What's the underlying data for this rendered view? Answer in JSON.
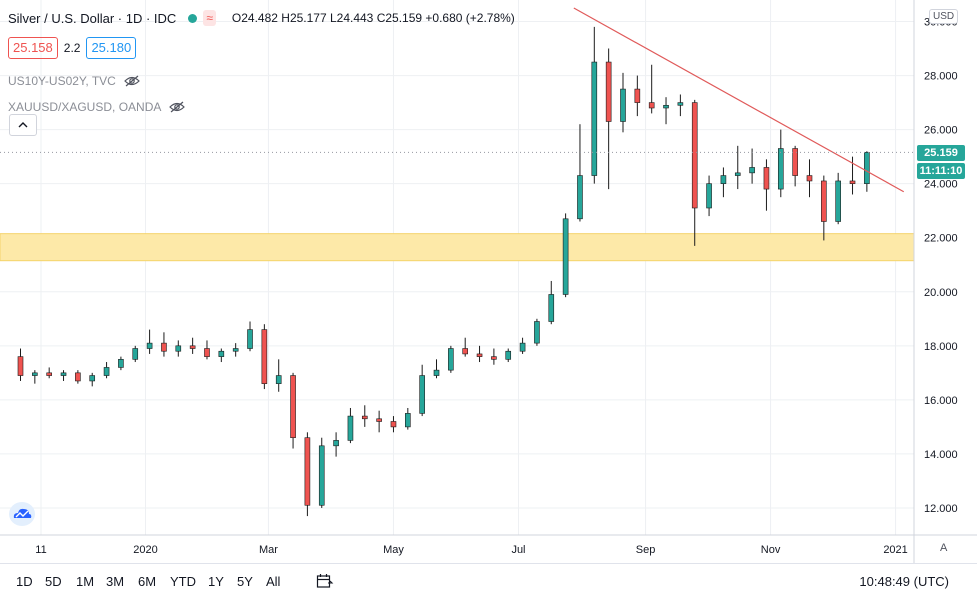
{
  "symbol": {
    "title": "Silver / U.S. Dollar · 1D · IDC",
    "ohlc": "O24.482 H25.177 L24.443 C25.159 +0.680 (+2.78%)",
    "wave_icon": "≈"
  },
  "quote": {
    "bid": "25.158",
    "spread": "2.2",
    "ask": "25.180"
  },
  "studies": [
    {
      "label": "US10Y-US02Y, TVC",
      "icon": "eye-slash-icon"
    },
    {
      "label": "XAUUSD/XAGUSD, OANDA",
      "icon": "eye-slash-icon"
    }
  ],
  "collapse_icon": "chevron-up-icon",
  "currency_badge": "USD",
  "price_axis": {
    "ticks": [
      "30.000",
      "28.000",
      "26.000",
      "24.000",
      "22.000",
      "20.000",
      "18.000",
      "16.000",
      "14.000",
      "12.000"
    ],
    "last_price": "25.159",
    "countdown": "11:11:10"
  },
  "time_axis": {
    "ticks": [
      "11",
      "2020",
      "Mar",
      "May",
      "Jul",
      "Sep",
      "Nov",
      "2021"
    ]
  },
  "auto_label": "A",
  "toolbar": {
    "ranges": [
      "1D",
      "5D",
      "1M",
      "3M",
      "6M",
      "YTD",
      "1Y",
      "5Y",
      "All"
    ],
    "compare_icon": "calendar-range-icon",
    "clock": "10:48:49 (UTC)"
  },
  "colors": {
    "up": "#26a69a",
    "down": "#ef5350",
    "trendline": "#e05a5a",
    "support_zone": "#fde9a8"
  },
  "chart_data": {
    "type": "candlestick",
    "ylim": [
      11.0,
      30.5
    ],
    "trendline": [
      {
        "date": "2020-07-28",
        "price": 30.5
      },
      {
        "date": "2021-01-05",
        "price": 23.7
      }
    ],
    "support_zone": [
      21.15,
      22.15
    ],
    "candles": [
      [
        "2019-11-01",
        17.6,
        17.9,
        16.7,
        16.9
      ],
      [
        "2019-11-08",
        16.9,
        17.1,
        16.6,
        17.0
      ],
      [
        "2019-11-15",
        17.0,
        17.2,
        16.8,
        16.9
      ],
      [
        "2019-11-22",
        16.9,
        17.1,
        16.7,
        17.0
      ],
      [
        "2019-11-29",
        17.0,
        17.1,
        16.6,
        16.7
      ],
      [
        "2019-12-06",
        16.7,
        17.0,
        16.5,
        16.9
      ],
      [
        "2019-12-13",
        16.9,
        17.4,
        16.8,
        17.2
      ],
      [
        "2019-12-20",
        17.2,
        17.6,
        17.1,
        17.5
      ],
      [
        "2019-12-27",
        17.5,
        18.0,
        17.4,
        17.9
      ],
      [
        "2020-01-03",
        17.9,
        18.6,
        17.7,
        18.1
      ],
      [
        "2020-01-10",
        18.1,
        18.5,
        17.6,
        17.8
      ],
      [
        "2020-01-17",
        17.8,
        18.2,
        17.6,
        18.0
      ],
      [
        "2020-01-24",
        18.0,
        18.3,
        17.7,
        17.9
      ],
      [
        "2020-01-31",
        17.9,
        18.2,
        17.5,
        17.6
      ],
      [
        "2020-02-07",
        17.6,
        17.9,
        17.4,
        17.8
      ],
      [
        "2020-02-14",
        17.8,
        18.1,
        17.6,
        17.9
      ],
      [
        "2020-02-21",
        17.9,
        18.9,
        17.8,
        18.6
      ],
      [
        "2020-02-28",
        18.6,
        18.8,
        16.4,
        16.6
      ],
      [
        "2020-03-06",
        16.6,
        17.5,
        16.3,
        16.9
      ],
      [
        "2020-03-13",
        16.9,
        17.0,
        14.2,
        14.6
      ],
      [
        "2020-03-20",
        14.6,
        14.8,
        11.7,
        12.1
      ],
      [
        "2020-03-27",
        12.1,
        14.6,
        12.0,
        14.3
      ],
      [
        "2020-04-03",
        14.3,
        14.8,
        13.9,
        14.5
      ],
      [
        "2020-04-10",
        14.5,
        15.7,
        14.4,
        15.4
      ],
      [
        "2020-04-17",
        15.4,
        15.8,
        15.0,
        15.3
      ],
      [
        "2020-04-24",
        15.3,
        15.6,
        14.8,
        15.2
      ],
      [
        "2020-05-01",
        15.2,
        15.4,
        14.8,
        15.0
      ],
      [
        "2020-05-08",
        15.0,
        15.7,
        14.9,
        15.5
      ],
      [
        "2020-05-15",
        15.5,
        17.3,
        15.4,
        16.9
      ],
      [
        "2020-05-22",
        16.9,
        17.5,
        16.8,
        17.1
      ],
      [
        "2020-05-29",
        17.1,
        18.0,
        17.0,
        17.9
      ],
      [
        "2020-06-05",
        17.9,
        18.3,
        17.6,
        17.7
      ],
      [
        "2020-06-12",
        17.7,
        18.0,
        17.4,
        17.6
      ],
      [
        "2020-06-19",
        17.6,
        17.9,
        17.3,
        17.5
      ],
      [
        "2020-06-26",
        17.5,
        17.9,
        17.4,
        17.8
      ],
      [
        "2020-07-03",
        17.8,
        18.3,
        17.7,
        18.1
      ],
      [
        "2020-07-10",
        18.1,
        19.0,
        18.0,
        18.9
      ],
      [
        "2020-07-17",
        18.9,
        20.4,
        18.8,
        19.9
      ],
      [
        "2020-07-24",
        19.9,
        22.9,
        19.8,
        22.7
      ],
      [
        "2020-07-31",
        22.7,
        26.2,
        22.6,
        24.3
      ],
      [
        "2020-08-07",
        24.3,
        29.8,
        24.0,
        28.5
      ],
      [
        "2020-08-14",
        28.5,
        29.0,
        23.8,
        26.3
      ],
      [
        "2020-08-21",
        26.3,
        28.1,
        25.9,
        27.5
      ],
      [
        "2020-08-28",
        27.5,
        28.0,
        26.5,
        27.0
      ],
      [
        "2020-09-04",
        27.0,
        28.4,
        26.6,
        26.8
      ],
      [
        "2020-09-11",
        26.8,
        27.2,
        26.2,
        26.9
      ],
      [
        "2020-09-18",
        26.9,
        27.3,
        26.5,
        27.0
      ],
      [
        "2020-09-25",
        27.0,
        27.1,
        21.7,
        23.1
      ],
      [
        "2020-10-02",
        23.1,
        24.3,
        22.8,
        24.0
      ],
      [
        "2020-10-09",
        24.0,
        24.6,
        23.5,
        24.3
      ],
      [
        "2020-10-16",
        24.3,
        25.4,
        23.8,
        24.4
      ],
      [
        "2020-10-23",
        24.4,
        25.3,
        24.0,
        24.6
      ],
      [
        "2020-10-30",
        24.6,
        24.9,
        23.0,
        23.8
      ],
      [
        "2020-11-06",
        23.8,
        26.0,
        23.5,
        25.3
      ],
      [
        "2020-11-13",
        25.3,
        25.4,
        23.9,
        24.3
      ],
      [
        "2020-11-20",
        24.3,
        24.9,
        23.5,
        24.1
      ],
      [
        "2020-11-27",
        24.1,
        24.3,
        21.9,
        22.6
      ],
      [
        "2020-12-04",
        22.6,
        24.4,
        22.5,
        24.1
      ],
      [
        "2020-12-11",
        24.1,
        25.0,
        23.6,
        24.0
      ],
      [
        "2020-12-18",
        24.0,
        25.2,
        23.7,
        25.159
      ]
    ]
  }
}
